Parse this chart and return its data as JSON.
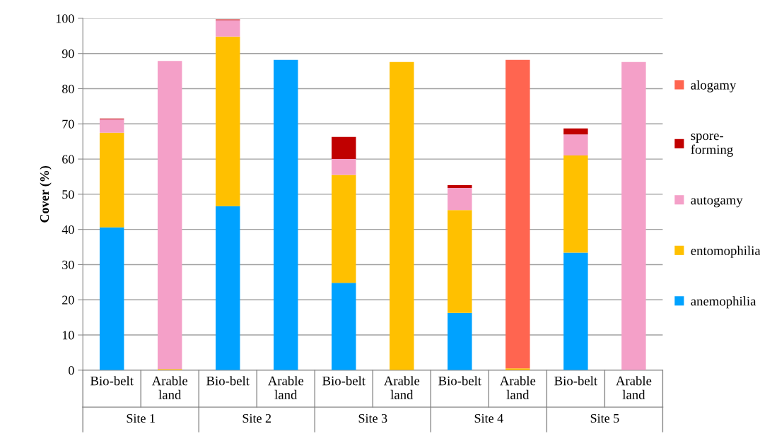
{
  "chart_data": {
    "type": "bar",
    "stacked": true,
    "ylabel": "Cover (%)",
    "categories": [
      "Bio-belt",
      "Arable land",
      "Bio-belt",
      "Arable land",
      "Bio-belt",
      "Arable land",
      "Bio-belt",
      "Arable land",
      "Bio-belt",
      "Arable land"
    ],
    "series": [
      {
        "name": "anemophilia",
        "color": "#00a2ff",
        "values": [
          40.6,
          0,
          46.6,
          88.2,
          24.8,
          0,
          16.3,
          0,
          33.4,
          0
        ]
      },
      {
        "name": "entomophilia",
        "color": "#ffc000",
        "values": [
          26.9,
          0.3,
          48.2,
          0,
          30.7,
          87.6,
          29.2,
          0.5,
          27.6,
          0
        ]
      },
      {
        "name": "autogamy",
        "color": "#f4a0c8",
        "values": [
          3.8,
          87.6,
          4.7,
          0,
          4.5,
          0,
          6.3,
          0,
          6.0,
          87.6
        ]
      },
      {
        "name": "spore-\nforming",
        "color": "#c00000",
        "values": [
          0.2,
          0,
          0.2,
          0,
          6.3,
          0,
          0.8,
          0,
          1.7,
          0
        ]
      },
      {
        "name": "alogamy",
        "color": "#ff6550",
        "values": [
          0,
          0,
          0,
          0,
          0,
          0,
          0,
          87.7,
          0,
          0
        ]
      }
    ],
    "ylim": [
      0,
      100
    ],
    "yticks": [
      0,
      10,
      20,
      30,
      40,
      50,
      60,
      70,
      80,
      90,
      100
    ],
    "grid": "y",
    "legend": "right",
    "annotations": [
      "Site 1",
      "Site 2",
      "Site 3",
      "Site 4",
      "Site 5"
    ]
  }
}
